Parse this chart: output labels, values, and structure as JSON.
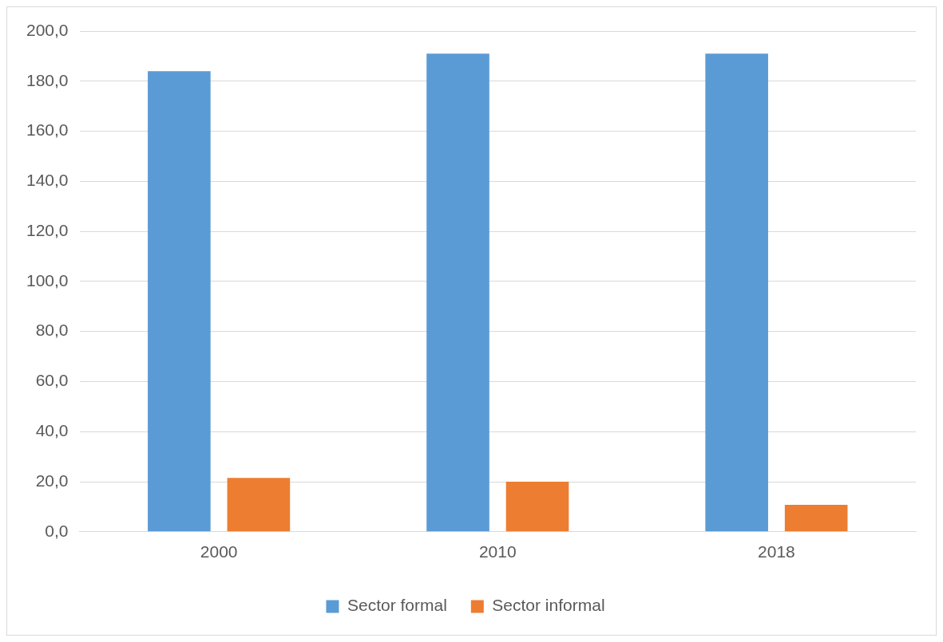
{
  "chart_data": {
    "type": "bar",
    "categories": [
      "2000",
      "2010",
      "2018"
    ],
    "series": [
      {
        "name": "Sector formal",
        "color": "#5b9bd5",
        "values": [
          184.0,
          191.0,
          191.0
        ]
      },
      {
        "name": "Sector informal",
        "color": "#ed7d31",
        "values": [
          21.5,
          20.0,
          10.8
        ]
      }
    ],
    "ylim": [
      0,
      200
    ],
    "yticks": [
      {
        "value": 0,
        "label": "0,0"
      },
      {
        "value": 20,
        "label": "20,0"
      },
      {
        "value": 40,
        "label": "40,0"
      },
      {
        "value": 60,
        "label": "60,0"
      },
      {
        "value": 80,
        "label": "80,0"
      },
      {
        "value": 100,
        "label": "100,0"
      },
      {
        "value": 120,
        "label": "120,0"
      },
      {
        "value": 140,
        "label": "140,0"
      },
      {
        "value": 160,
        "label": "160,0"
      },
      {
        "value": 180,
        "label": "180,0"
      },
      {
        "value": 200,
        "label": "200,0"
      }
    ],
    "grid": "y",
    "legend": "bottom"
  }
}
